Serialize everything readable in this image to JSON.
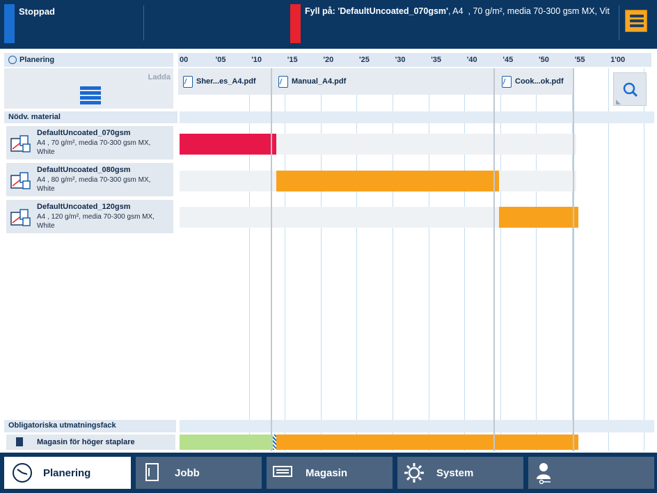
{
  "status": {
    "state_label": "Stoppad",
    "fill_prefix": "Fyll på: ",
    "fill_media": "'DefaultUncoated_070gsm'",
    "fill_details": ", A4  , 70 g/m², media 70-300 gsm MX, Vit",
    "state_color": "#1b6fd1",
    "alert_color": "#e8232e"
  },
  "panel": {
    "section_title": "Planering",
    "load_label": "Ladda",
    "materials_header": "Nödv. material",
    "output_header": "Obligatoriska utmatningsfack",
    "output_tray": "Magasin för höger staplare"
  },
  "timeline": {
    "ticks": [
      "00",
      "'05",
      "'10",
      "'15",
      "'20",
      "'25",
      "'30",
      "'35",
      "'40",
      "'45",
      "'50",
      "'55",
      "1'00"
    ],
    "jobs": [
      {
        "label": "Sher...es_A4.pdf"
      },
      {
        "label": "Manual_A4.pdf"
      },
      {
        "label": "Cook...ok.pdf"
      }
    ],
    "media": [
      {
        "name": "DefaultUncoated_070gsm",
        "desc": "A4 , 70 g/m², media 70-300 gsm MX, White",
        "bar_color": "#e8174a",
        "start_min": 0,
        "end_min": 13.5
      },
      {
        "name": "DefaultUncoated_080gsm",
        "desc": "A4 , 80 g/m², media 70-300 gsm MX, White",
        "bar_color": "#f8a11c",
        "start_min": 13.5,
        "end_min": 44.5
      },
      {
        "name": "DefaultUncoated_120gsm",
        "desc": "A4 , 120 g/m², media 70-300 gsm MX, White",
        "bar_color": "#f8a11c",
        "start_min": 44.5,
        "end_min": 55.5
      }
    ],
    "output_bar": {
      "done_color": "#b6e08e",
      "busy_color": "#f8a11c",
      "done_end_min": 13,
      "busy_start_min": 13.5,
      "end_min": 55.5
    }
  },
  "nav": {
    "tabs": [
      {
        "label": "Planering",
        "icon": "clock-icon",
        "active": true
      },
      {
        "label": "Jobb",
        "icon": "document-icon",
        "active": false
      },
      {
        "label": "Magasin",
        "icon": "tray-icon",
        "active": false
      },
      {
        "label": "System",
        "icon": "gear-icon",
        "active": false
      },
      {
        "label": "",
        "icon": "user-key-icon",
        "active": false
      }
    ]
  }
}
